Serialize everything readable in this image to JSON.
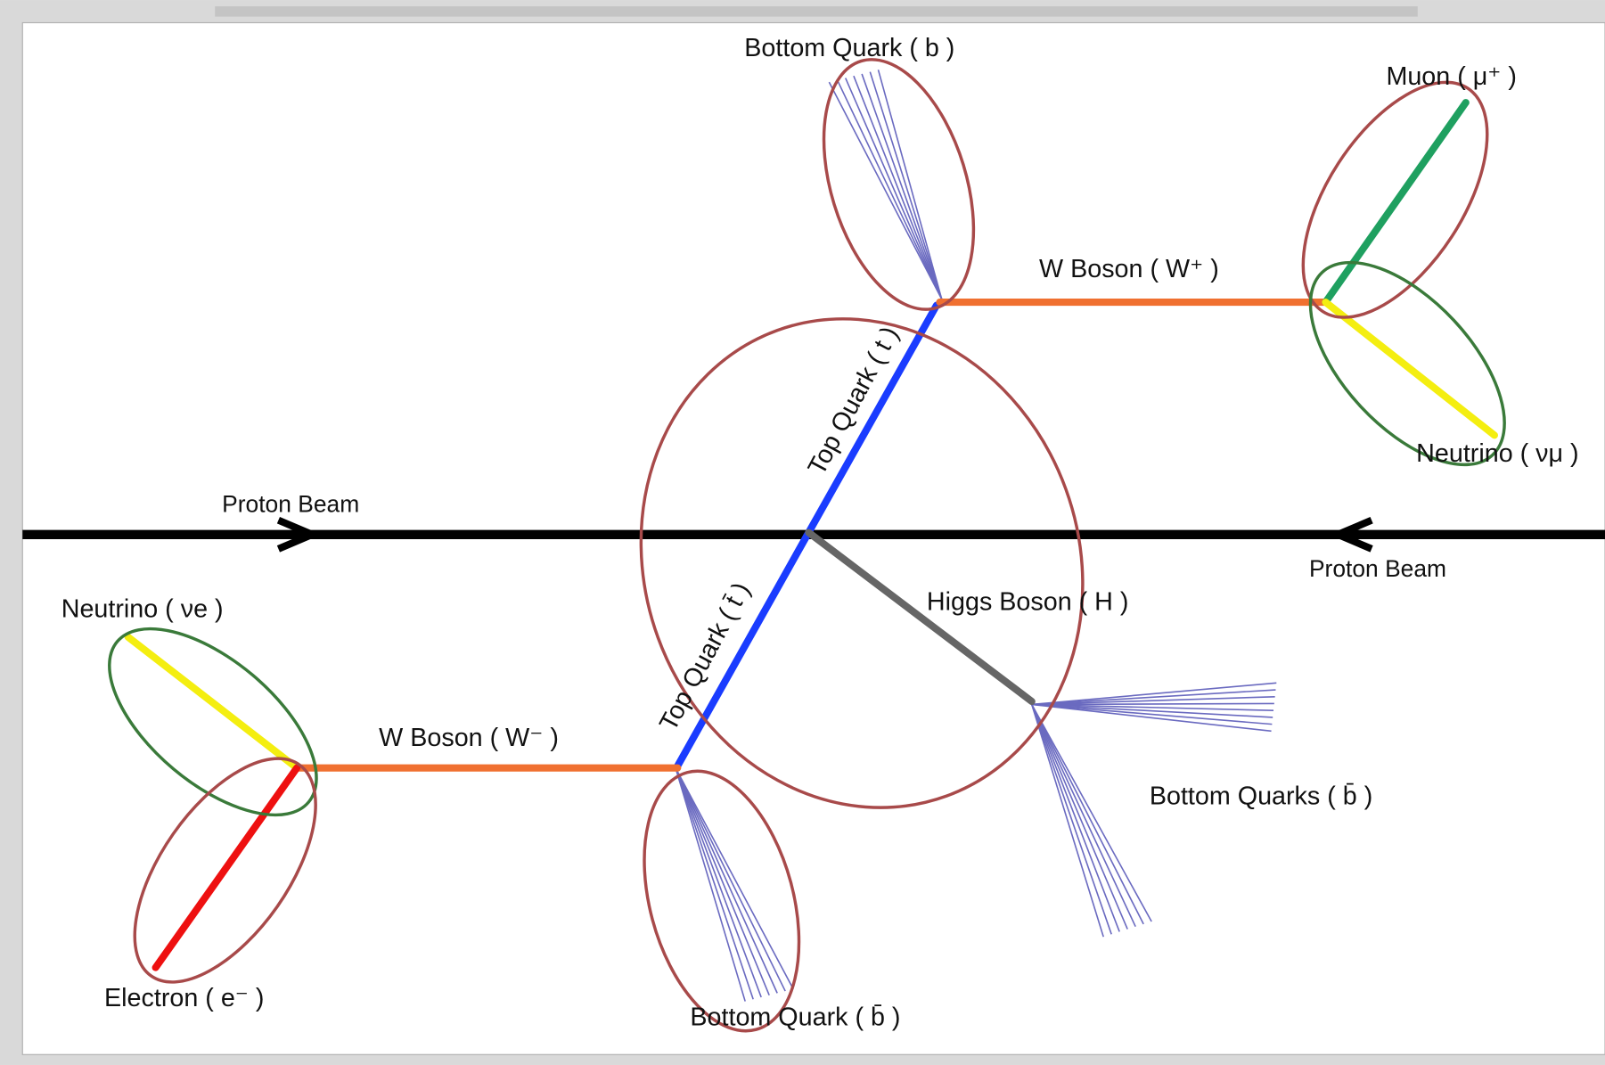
{
  "labels": {
    "bottom_quark_top": "Bottom Quark ( b )",
    "muon": "Muon ( μ⁺ )",
    "w_boson_plus": "W Boson ( W⁺ )",
    "top_quark": "Top Quark ( t )",
    "neutrino_mu": "Neutrino ( νμ )",
    "proton_beam_left": "Proton Beam",
    "proton_beam_right": "Proton Beam",
    "higgs_boson": "Higgs Boson ( H )",
    "anti_top_quark": "Top Quark ( t̄ )",
    "neutrino_e": "Neutrino ( νe )",
    "w_boson_minus": "W Boson ( W⁻ )",
    "bottom_quarks_higgs": "Bottom Quarks ( b̄ )",
    "electron": "Electron ( e⁻ )",
    "bottom_quark_bottom": "Bottom Quark ( b̄ )"
  }
}
